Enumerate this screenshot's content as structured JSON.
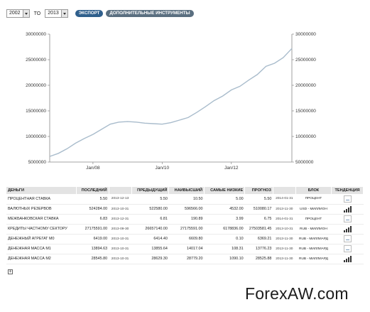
{
  "toolbar": {
    "from_year": "2002",
    "to_label": "TO",
    "to_year": "2013",
    "export_label": "ЭКСПОРТ",
    "tools_label": "ДОПОЛНИТЕЛЬНЫЕ ИНСТРУМЕНТЫ"
  },
  "chart_data": {
    "type": "line",
    "ylim": [
      5000000,
      30000000
    ],
    "y_ticks": [
      "30000000",
      "25000000",
      "20000000",
      "15000000",
      "10000000",
      "5000000"
    ],
    "y_tick_values": [
      30000000,
      25000000,
      20000000,
      15000000,
      10000000,
      5000000
    ],
    "xlim": [
      "2006-10",
      "2013-10"
    ],
    "x_ticks": [
      "Jan/08",
      "Jan/10",
      "Jan/12"
    ],
    "x_tick_dates": [
      "2008-01",
      "2010-01",
      "2012-01"
    ],
    "line_color": "#a9bccc",
    "grid": false,
    "series": [
      {
        "x": [
          "2006-10",
          "2007-01",
          "2007-04",
          "2007-07",
          "2007-10",
          "2008-01",
          "2008-04",
          "2008-07",
          "2008-10",
          "2009-01",
          "2009-04",
          "2009-07",
          "2009-10",
          "2010-01",
          "2010-04",
          "2010-07",
          "2010-10",
          "2011-01",
          "2011-04",
          "2011-07",
          "2011-10",
          "2012-01",
          "2012-04",
          "2012-07",
          "2012-10",
          "2013-01",
          "2013-04",
          "2013-07",
          "2013-10"
        ],
        "y": [
          6100000,
          6700000,
          7600000,
          8700000,
          9600000,
          10400000,
          11400000,
          12400000,
          12800000,
          12900000,
          12800000,
          12600000,
          12500000,
          12400000,
          12700000,
          13200000,
          13700000,
          14700000,
          15800000,
          17000000,
          17900000,
          19100000,
          19800000,
          21000000,
          22100000,
          23700000,
          24300000,
          25400000,
          27200000
        ]
      }
    ]
  },
  "table": {
    "headers": [
      "ДЕНЬГИ",
      "ПОСЛЕДНИЙ",
      "",
      "ПРЕДЫДУЩИЙ",
      "НАИВЫСШИЙ",
      "САМЫЕ НИЗКИЕ",
      "ПРОГНОЗ",
      "",
      "БЛОК",
      "ТЕНДЕНЦИЯ"
    ],
    "rows": [
      {
        "name": "ПРОЦЕНТНАЯ СТАВКА",
        "last": "5.50",
        "date": "2013-12-13",
        "prev": "5.50",
        "high": "10.50",
        "low": "5.00",
        "forecast": "5.50",
        "fdate": "2014-01-31",
        "unit": "ПРОЦЕНТ",
        "trend": "chart"
      },
      {
        "name": "ВАЛЮТНЫХ РЕЗЕРВОВ",
        "last": "524284.00",
        "date": "2013-10-31",
        "prev": "522580.00",
        "high": "596566.00",
        "low": "4532.00",
        "forecast": "510080.17",
        "fdate": "2013-11-30",
        "unit": "USD - МИЛЛИОН",
        "trend": "bars"
      },
      {
        "name": "МЕЖБАНКОВСКАЯ СТАВКА",
        "last": "6.83",
        "date": "2013-12-31",
        "prev": "6.81",
        "high": "190.89",
        "low": "3.99",
        "forecast": "6.75",
        "fdate": "2014-01-31",
        "unit": "ПРОЦЕНТ",
        "trend": "chart"
      },
      {
        "name": "КРЕДИТЫ ЧАСТНОМУ СЕКТОРУ",
        "last": "27175591.00",
        "date": "2013-09-30",
        "prev": "26657140.00",
        "high": "27175591.00",
        "low": "6178836.00",
        "forecast": "27503581.45",
        "fdate": "2013-10-31",
        "unit": "RUB - МИЛЛИОН",
        "trend": "bars"
      },
      {
        "name": "ДЕНЕЖНЫЙ АГРЕГАТ М0",
        "last": "6419.00",
        "date": "2013-10-31",
        "prev": "6414.40",
        "high": "6609.80",
        "low": "0.10",
        "forecast": "6369.21",
        "fdate": "2013-11-30",
        "unit": "RUB - МИЛЛИАРД",
        "trend": "chart"
      },
      {
        "name": "ДЕНЕЖНАЯ МАССА М1",
        "last": "13894.63",
        "date": "2013-10-31",
        "prev": "13855.64",
        "high": "14017.04",
        "low": "108.31",
        "forecast": "13776.23",
        "fdate": "2013-11-30",
        "unit": "RUB - МИЛЛИАРД",
        "trend": "chart"
      },
      {
        "name": "ДЕНЕЖНАЯ МАССА М2",
        "last": "28545.80",
        "date": "2013-10-31",
        "prev": "28629.30",
        "high": "28779.20",
        "low": "1090.10",
        "forecast": "28525.88",
        "fdate": "2013-11-30",
        "unit": "RUB - МИЛЛИАРД",
        "trend": "bars"
      }
    ]
  },
  "expander_symbol": "+",
  "watermark": "ForexAW.com"
}
